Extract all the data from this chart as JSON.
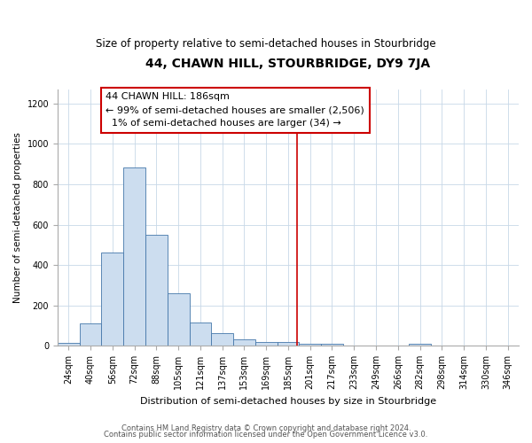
{
  "title": "44, CHAWN HILL, STOURBRIDGE, DY9 7JA",
  "subtitle": "Size of property relative to semi-detached houses in Stourbridge",
  "xlabel": "Distribution of semi-detached houses by size in Stourbridge",
  "ylabel": "Number of semi-detached properties",
  "bar_labels": [
    "24sqm",
    "40sqm",
    "56sqm",
    "72sqm",
    "88sqm",
    "105sqm",
    "121sqm",
    "137sqm",
    "153sqm",
    "169sqm",
    "185sqm",
    "201sqm",
    "217sqm",
    "233sqm",
    "249sqm",
    "266sqm",
    "282sqm",
    "298sqm",
    "314sqm",
    "330sqm",
    "346sqm"
  ],
  "bar_values": [
    15,
    110,
    460,
    885,
    548,
    260,
    115,
    62,
    30,
    18,
    18,
    10,
    7,
    2,
    0,
    0,
    8,
    0,
    0,
    0,
    0
  ],
  "bar_color": "#ccddef",
  "bar_edge_color": "#4477aa",
  "vline_color": "#cc0000",
  "annotation_title": "44 CHAWN HILL: 186sqm",
  "annotation_line1": "← 99% of semi-detached houses are smaller (2,506)",
  "annotation_line2": "  1% of semi-detached houses are larger (34) →",
  "ylim": [
    0,
    1270
  ],
  "yticks": [
    0,
    200,
    400,
    600,
    800,
    1000,
    1200
  ],
  "footnote1": "Contains HM Land Registry data © Crown copyright and database right 2024.",
  "footnote2": "Contains public sector information licensed under the Open Government Licence v3.0.",
  "title_fontsize": 10,
  "subtitle_fontsize": 8.5,
  "xlabel_fontsize": 8,
  "ylabel_fontsize": 7.5,
  "tick_fontsize": 7,
  "annotation_fontsize": 8,
  "footnote_fontsize": 6
}
